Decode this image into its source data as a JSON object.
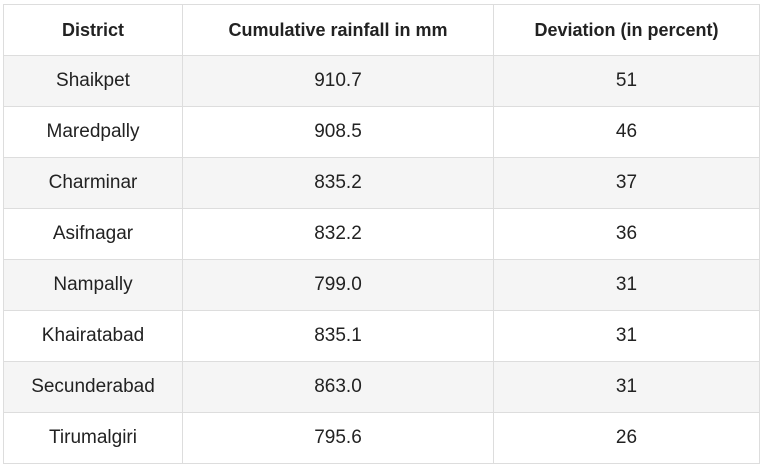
{
  "table": {
    "header": [
      "District",
      "Cumulative rainfall in mm",
      "Deviation (in percent)"
    ],
    "rows": [
      [
        "Shaikpet",
        "910.7",
        "51"
      ],
      [
        "Maredpally",
        "908.5",
        "46"
      ],
      [
        "Charminar",
        "835.2",
        "37"
      ],
      [
        "Asifnagar",
        "832.2",
        "36"
      ],
      [
        "Nampally",
        "799.0",
        "31"
      ],
      [
        "Khairatabad",
        "835.1",
        "31"
      ],
      [
        "Secunderabad",
        "863.0",
        "31"
      ],
      [
        "Tirumalgiri",
        "795.6",
        "26"
      ]
    ]
  }
}
